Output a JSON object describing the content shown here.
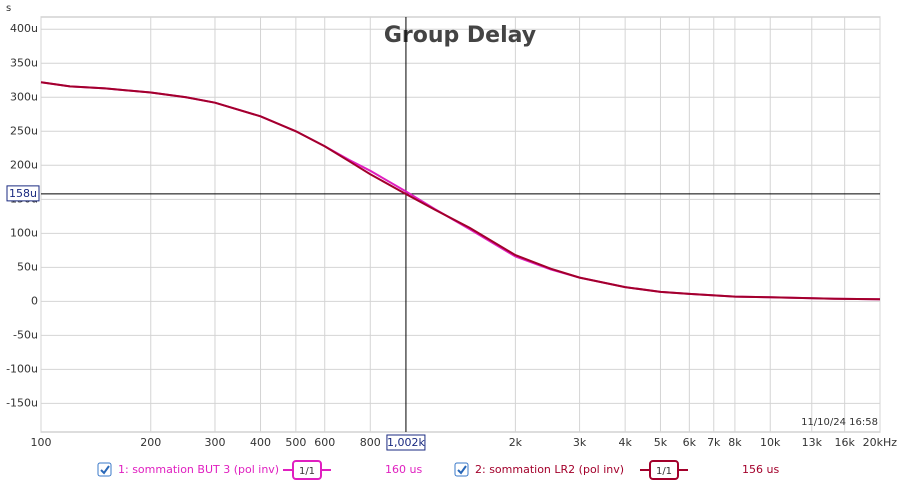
{
  "chart_data": {
    "type": "line",
    "title": "Group Delay",
    "y_unit": "s",
    "log_x": true,
    "grid": true,
    "x": [
      100,
      120,
      150,
      200,
      250,
      300,
      400,
      500,
      600,
      700,
      800,
      1000,
      1200,
      1500,
      2000,
      2500,
      3000,
      4000,
      5000,
      6000,
      8000,
      10000,
      15000,
      20000
    ],
    "series": [
      {
        "name": "1: sommation BUT 3 (pol inv)",
        "color": "#e01fc0",
        "scale_label": "1/1",
        "cursor_readout": "160 us",
        "values": [
          322,
          316,
          313,
          307,
          300,
          292,
          272,
          250,
          228,
          208,
          192,
          162,
          136,
          106,
          66,
          47,
          35,
          21,
          14,
          11,
          7,
          6,
          4,
          3
        ]
      },
      {
        "name": "2: sommation LR2 (pol inv)",
        "color": "#a3002b",
        "scale_label": "1/1",
        "cursor_readout": "156 us",
        "values": [
          322,
          316,
          313,
          307,
          300,
          292,
          272,
          250,
          228,
          206,
          187,
          158,
          135,
          108,
          68,
          48,
          35,
          21,
          14,
          11,
          7,
          6,
          4,
          3
        ]
      }
    ],
    "xlim": [
      100,
      20000
    ],
    "xticks": [
      100,
      200,
      300,
      400,
      500,
      600,
      800,
      {
        "value": 2000,
        "label": "2k"
      },
      {
        "value": 3000,
        "label": "3k"
      },
      {
        "value": 4000,
        "label": "4k"
      },
      {
        "value": 5000,
        "label": "5k"
      },
      {
        "value": 6000,
        "label": "6k"
      },
      {
        "value": 7000,
        "label": "7k"
      },
      {
        "value": 8000,
        "label": "8k"
      },
      {
        "value": 10000,
        "label": "10k"
      },
      {
        "value": 13000,
        "label": "13k"
      },
      {
        "value": 16000,
        "label": "16k"
      },
      {
        "value": 20000,
        "label": "20kHz"
      }
    ],
    "ylim": [
      -192,
      418
    ],
    "yticks": [
      {
        "value": -150,
        "label": "-150u"
      },
      {
        "value": -100,
        "label": "-100u"
      },
      {
        "value": -50,
        "label": "-50u"
      },
      0,
      {
        "value": 50,
        "label": "50u"
      },
      {
        "value": 100,
        "label": "100u"
      },
      {
        "value": 150,
        "label": "150u"
      },
      {
        "value": 200,
        "label": "200u"
      },
      {
        "value": 250,
        "label": "250u"
      },
      {
        "value": 300,
        "label": "300u"
      },
      {
        "value": 350,
        "label": "350u"
      },
      {
        "value": 400,
        "label": "400u"
      }
    ],
    "cursor": {
      "x": 1002,
      "x_label": "1,002k",
      "y": 158,
      "y_label": "158u"
    },
    "timestamp": "11/10/24 16:58"
  }
}
